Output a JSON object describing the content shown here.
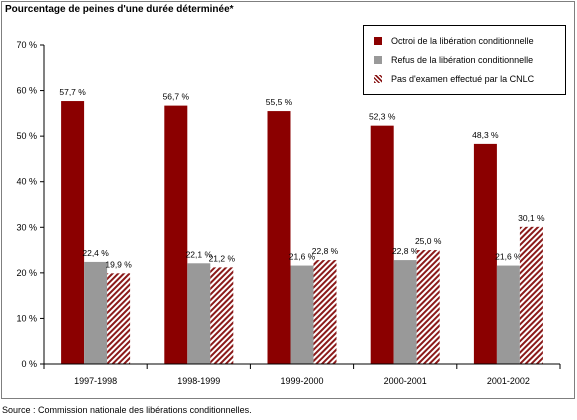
{
  "title": "Pourcentage de peines d'une durée déterminée*",
  "source": "Source : Commission nationale des libérations conditionnelles.",
  "colors": {
    "octroi": "#8b0000",
    "refus": "#999999",
    "hatch": "#8b1a1a"
  },
  "chart_data": {
    "type": "bar",
    "categories": [
      "1997-1998",
      "1998-1999",
      "1999-2000",
      "2000-2001",
      "2001-2002"
    ],
    "series": [
      {
        "name": "Octroi de la libération conditionnelle",
        "values": [
          57.7,
          56.7,
          55.5,
          52.3,
          48.3
        ],
        "labels": [
          "57,7 %",
          "56,7 %",
          "55,5 %",
          "52,3 %",
          "48,3 %"
        ]
      },
      {
        "name": "Refus de la libération conditionnelle",
        "values": [
          22.4,
          22.1,
          21.6,
          22.8,
          21.6
        ],
        "labels": [
          "22,4 %",
          "22,1 %",
          "21,6 %",
          "22,8 %",
          "21,6 %"
        ]
      },
      {
        "name": "Pas d'examen effectué par la CNLC",
        "values": [
          19.9,
          21.2,
          22.8,
          25.0,
          30.1
        ],
        "labels": [
          "19,9 %",
          "21,2 %",
          "22,8 %",
          "25,0 %",
          "30,1 %"
        ]
      }
    ],
    "ylim": [
      0,
      70
    ],
    "yticks": [
      0,
      10,
      20,
      30,
      40,
      50,
      60,
      70
    ],
    "ytick_labels": [
      "0 %",
      "10 %",
      "20 %",
      "30 %",
      "40 %",
      "50 %",
      "60 %",
      "70 %"
    ],
    "grid": false,
    "legend": "top-right"
  }
}
